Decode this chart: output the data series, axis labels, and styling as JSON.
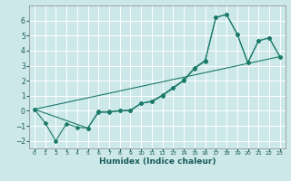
{
  "xlabel": "Humidex (Indice chaleur)",
  "background_color": "#cce8e8",
  "grid_color": "#ffffff",
  "line_color": "#1a7a6a",
  "xlim": [
    -0.5,
    23.5
  ],
  "ylim": [
    -2.5,
    7.0
  ],
  "xticks": [
    0,
    1,
    2,
    3,
    4,
    5,
    6,
    7,
    8,
    9,
    10,
    11,
    12,
    13,
    14,
    15,
    16,
    17,
    18,
    19,
    20,
    21,
    22,
    23
  ],
  "yticks": [
    -2,
    -1,
    0,
    1,
    2,
    3,
    4,
    5,
    6
  ],
  "series1": [
    [
      0,
      0.1
    ],
    [
      1,
      -0.8
    ],
    [
      2,
      -2.0
    ],
    [
      3,
      -0.85
    ],
    [
      4,
      -1.1
    ],
    [
      5,
      -1.15
    ],
    [
      6,
      -0.1
    ],
    [
      7,
      -0.1
    ],
    [
      8,
      0.0
    ],
    [
      9,
      0.0
    ],
    [
      10,
      0.5
    ],
    [
      11,
      0.6
    ],
    [
      12,
      1.0
    ],
    [
      13,
      1.5
    ],
    [
      14,
      2.0
    ],
    [
      15,
      2.8
    ],
    [
      16,
      3.3
    ],
    [
      17,
      6.2
    ],
    [
      18,
      6.4
    ],
    [
      19,
      5.1
    ],
    [
      20,
      3.2
    ],
    [
      21,
      4.65
    ],
    [
      22,
      4.85
    ],
    [
      23,
      3.6
    ]
  ],
  "series2": [
    [
      0,
      0.1
    ],
    [
      5,
      -1.15
    ],
    [
      6,
      -0.05
    ],
    [
      7,
      -0.05
    ],
    [
      8,
      0.0
    ],
    [
      9,
      0.05
    ],
    [
      10,
      0.5
    ],
    [
      11,
      0.65
    ],
    [
      12,
      1.05
    ],
    [
      13,
      1.55
    ],
    [
      14,
      2.05
    ],
    [
      15,
      2.85
    ],
    [
      16,
      3.35
    ],
    [
      17,
      6.2
    ],
    [
      18,
      6.4
    ],
    [
      19,
      5.1
    ],
    [
      20,
      3.2
    ],
    [
      21,
      4.65
    ],
    [
      22,
      4.85
    ],
    [
      23,
      3.6
    ]
  ],
  "series3_x": [
    0,
    23
  ],
  "series3_y": [
    0.1,
    3.6
  ]
}
